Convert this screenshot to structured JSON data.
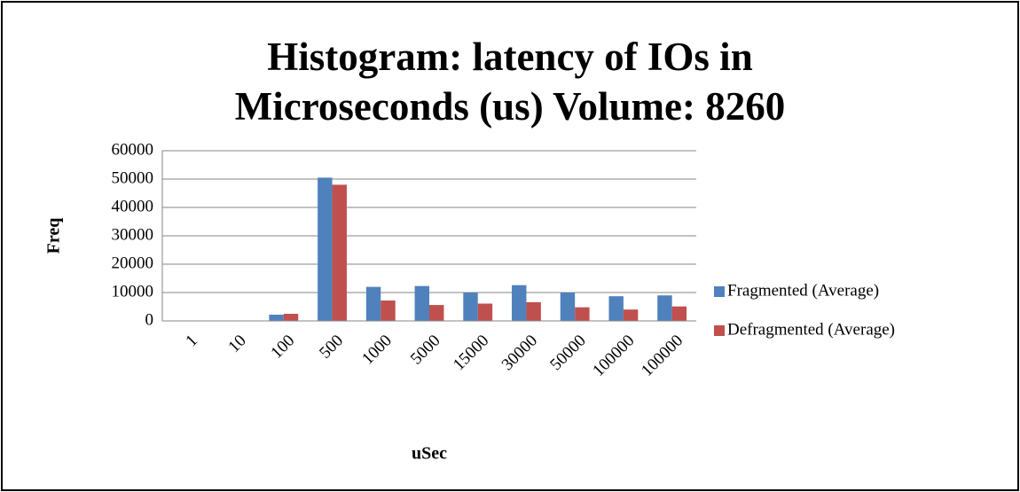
{
  "chart_data": {
    "type": "bar",
    "title": "Histogram: latency of IOs in Microseconds (us) Volume: 8260",
    "x_label": "uSec",
    "y_label": "Freq",
    "categories": [
      "1",
      "10",
      "100",
      "500",
      "1000",
      "5000",
      "15000",
      "30000",
      "50000",
      "100000",
      "100000"
    ],
    "series": [
      {
        "name": "Fragmented (Average)",
        "color": "#4f81bd",
        "values": [
          0,
          0,
          2200,
          50500,
          12000,
          12300,
          10000,
          12600,
          10000,
          8700,
          9000
        ]
      },
      {
        "name": "Defragmented (Average)",
        "color": "#c0504d",
        "values": [
          0,
          0,
          2500,
          48000,
          7200,
          5600,
          6100,
          6600,
          4800,
          4000,
          5100
        ]
      }
    ],
    "ylim": [
      0,
      60000
    ],
    "yticks": [
      0,
      10000,
      20000,
      30000,
      40000,
      50000,
      60000
    ],
    "grid": true,
    "legend": "right"
  }
}
